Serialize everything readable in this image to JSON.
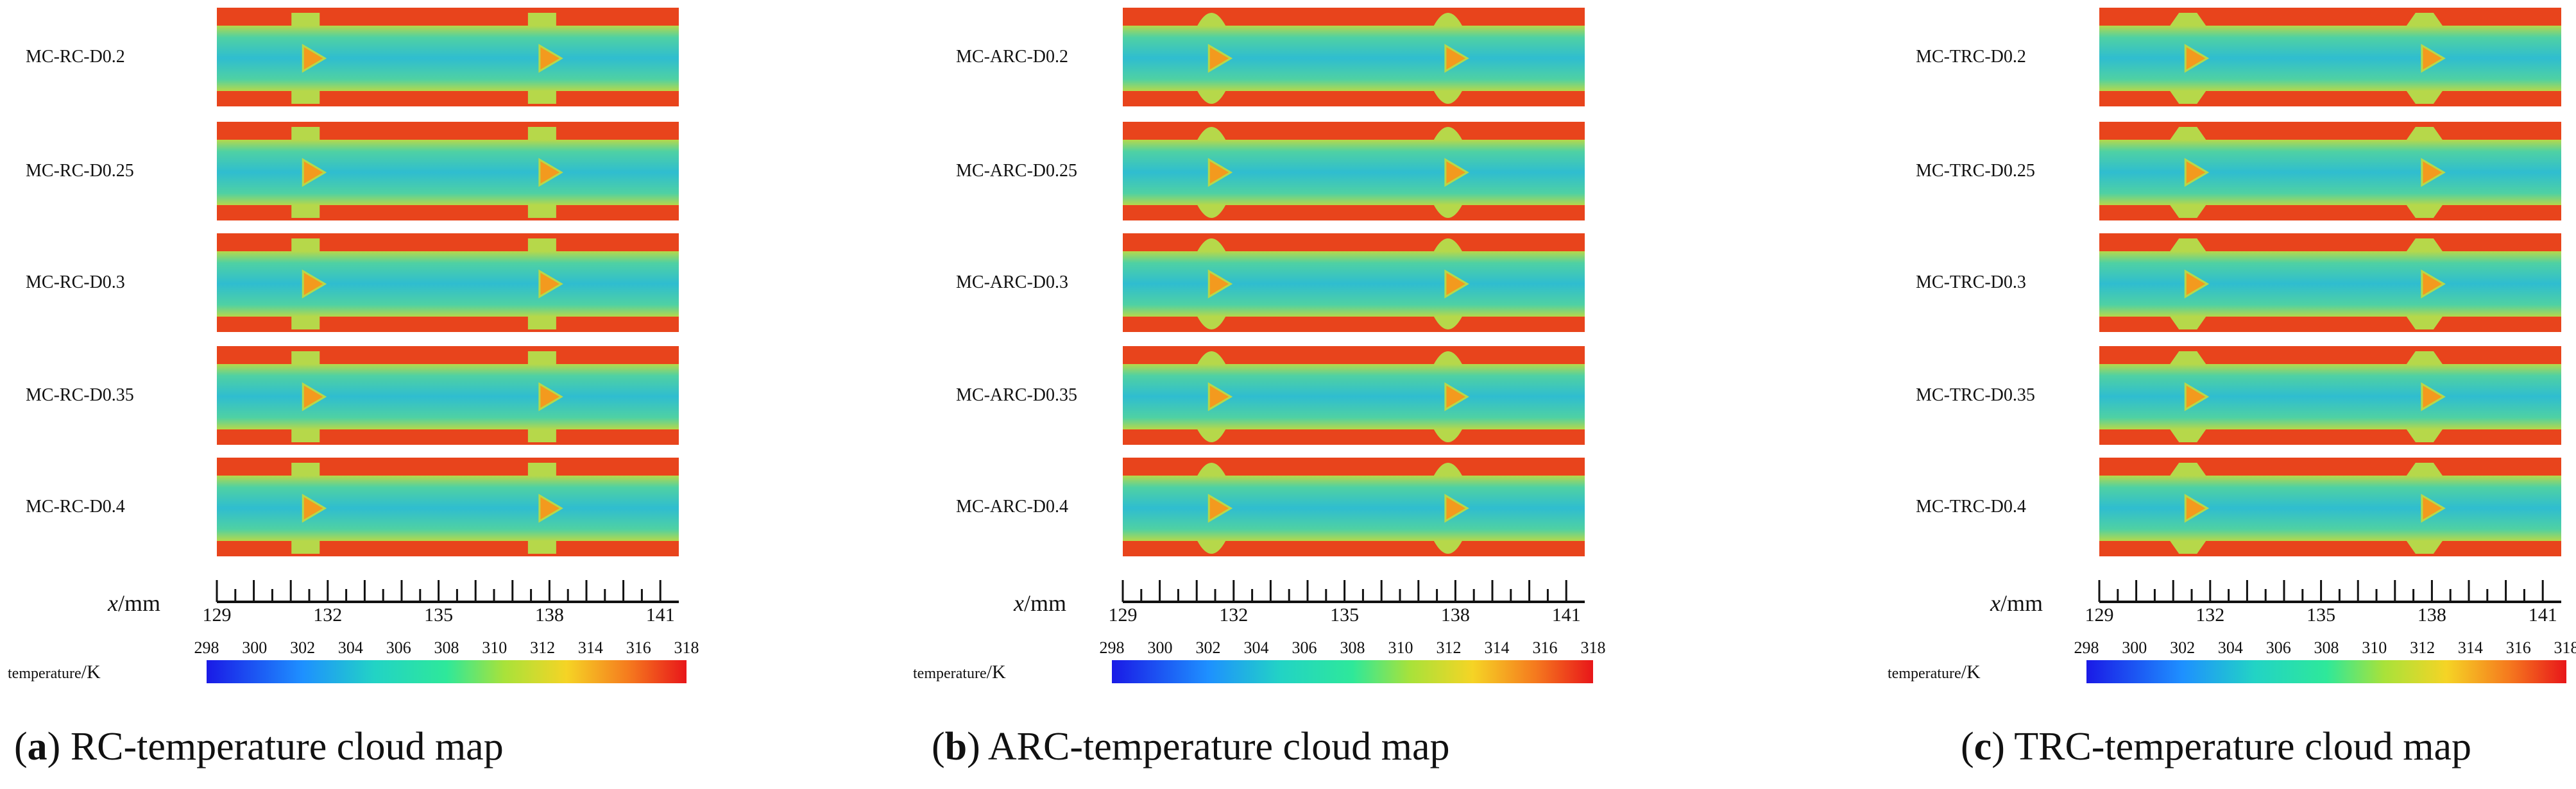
{
  "panels": [
    {
      "id": "a",
      "caption_letter": "a",
      "caption_text": "RC-temperature cloud map",
      "rows": [
        "MC-RC-D0.2",
        "MC-RC-D0.25",
        "MC-RC-D0.3",
        "MC-RC-D0.35",
        "MC-RC-D0.4"
      ],
      "bump_shape": "rectangular"
    },
    {
      "id": "b",
      "caption_letter": "b",
      "caption_text": "ARC-temperature cloud map",
      "rows": [
        "MC-ARC-D0.2",
        "MC-ARC-D0.25",
        "MC-ARC-D0.3",
        "MC-ARC-D0.35",
        "MC-ARC-D0.4"
      ],
      "bump_shape": "arc"
    },
    {
      "id": "c",
      "caption_letter": "c",
      "caption_text": "TRC-temperature cloud map",
      "rows": [
        "MC-TRC-D0.2",
        "MC-TRC-D0.25",
        "MC-TRC-D0.3",
        "MC-TRC-D0.35",
        "MC-TRC-D0.4"
      ],
      "bump_shape": "trapezoidal"
    }
  ],
  "x_axis": {
    "label_var": "x",
    "label_unit": "/mm",
    "ticks": [
      "129",
      "132",
      "135",
      "138",
      "141"
    ],
    "range": [
      129,
      141.5
    ]
  },
  "colorbar": {
    "title": "temperature",
    "unit": "/K",
    "min": 298,
    "max": 318,
    "ticks": [
      "298",
      "300",
      "302",
      "304",
      "306",
      "308",
      "310",
      "312",
      "314",
      "316",
      "318"
    ]
  },
  "colors": {
    "hot": "#e8441c",
    "core": "#4fd1a3",
    "cool": "#2fbdd0",
    "edge": "#b6d84a",
    "triangle": "#f39a1e"
  }
}
